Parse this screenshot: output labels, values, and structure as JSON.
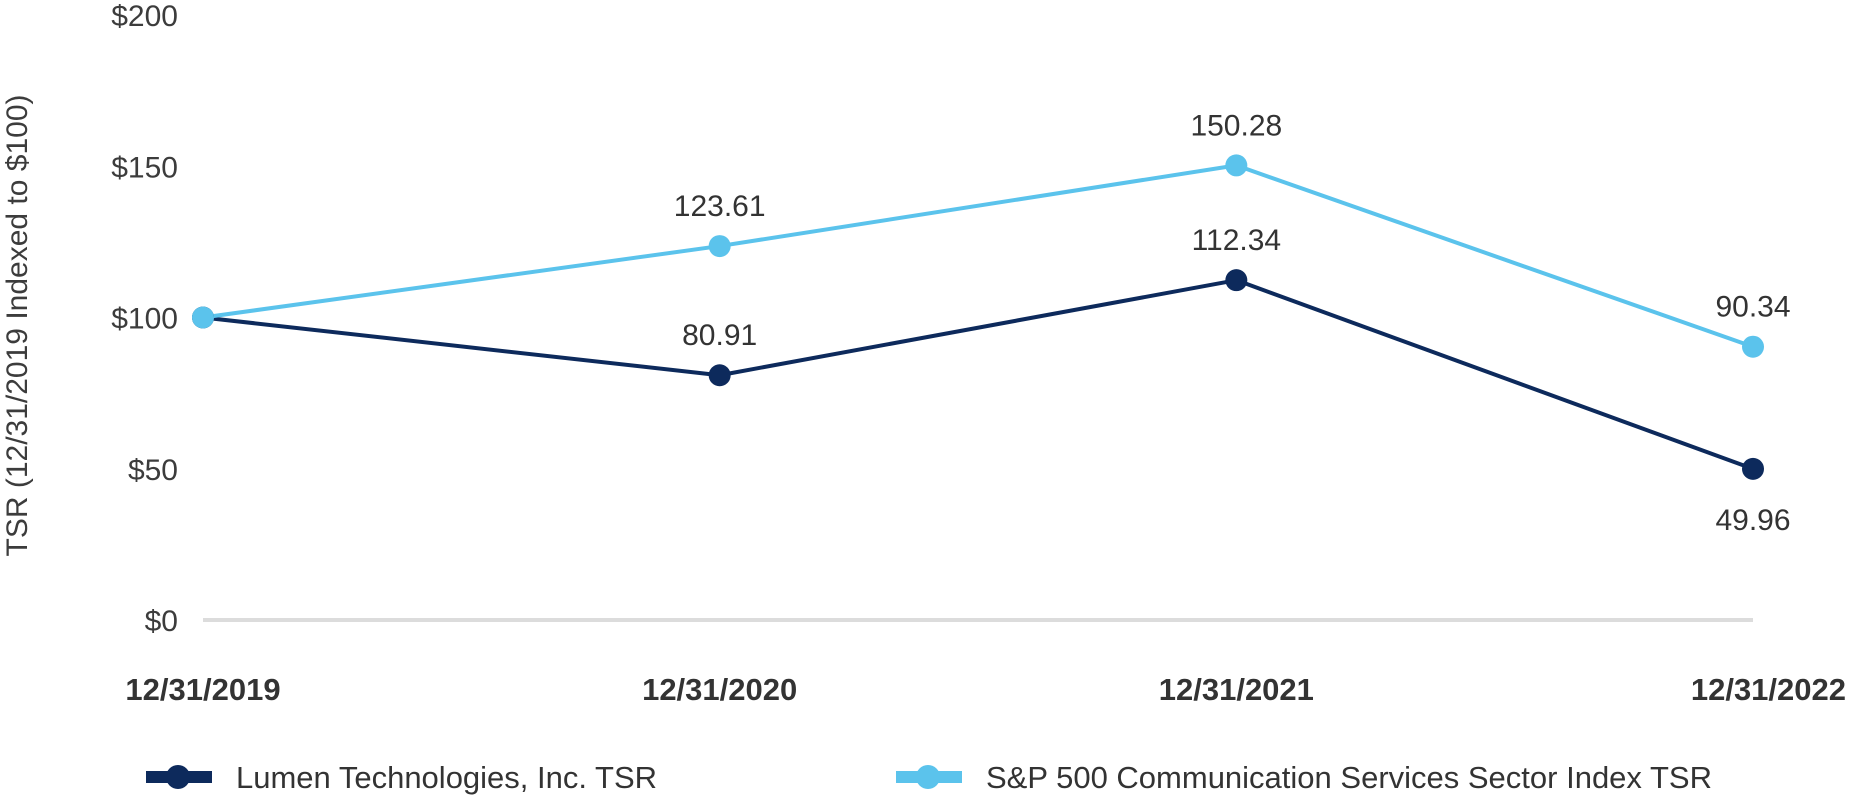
{
  "chart_data": {
    "type": "line",
    "title": "",
    "xlabel": "",
    "ylabel": "TSR (12/31/2019 Indexed to $100)",
    "categories": [
      "12/31/2019",
      "12/31/2020",
      "12/31/2021",
      "12/31/2022"
    ],
    "ylim": [
      0,
      200
    ],
    "yticks": [
      0,
      50,
      100,
      150,
      200
    ],
    "ytick_labels": [
      "$0",
      "$50",
      "$100",
      "$150",
      "$200"
    ],
    "grid": false,
    "legend_position": "bottom",
    "series": [
      {
        "name": "Lumen Technologies, Inc. TSR",
        "color": "#0d2a5c",
        "values": [
          100,
          80.91,
          112.34,
          49.96
        ],
        "labels": [
          "",
          "80.91",
          "112.34",
          "49.96"
        ],
        "label_positions": [
          "none",
          "above",
          "above",
          "below"
        ]
      },
      {
        "name": "S&P 500 Communication Services Sector Index TSR",
        "color": "#5bc3ec",
        "values": [
          100,
          123.61,
          150.28,
          90.34
        ],
        "labels": [
          "",
          "123.61",
          "150.28",
          "90.34"
        ],
        "label_positions": [
          "none",
          "above",
          "above",
          "above"
        ]
      }
    ]
  }
}
